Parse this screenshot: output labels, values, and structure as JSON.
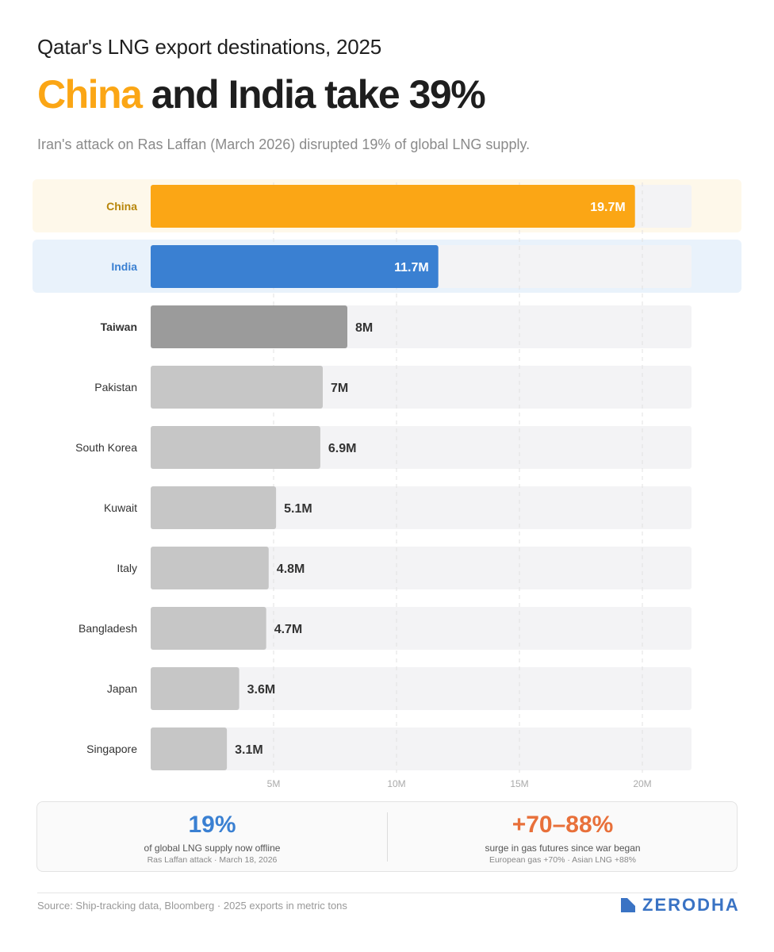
{
  "header": {
    "kicker": "Qatar's LNG export destinations, 2025",
    "headline_highlight": "China",
    "headline_rest": " and India take 39%",
    "subtitle": "Iran's attack on Ras Laffan (March 2026) disrupted 19% of global LNG supply."
  },
  "colors": {
    "china": "#fba615",
    "china_label": "#b8860b",
    "china_row_bg": "#fef8ea",
    "india": "#3a80d2",
    "india_row_bg": "#e9f2fb",
    "taiwan": "#9b9b9b",
    "default_bar": "#c6c6c6",
    "track": "#f3f3f5"
  },
  "chart_data": {
    "type": "bar",
    "orientation": "horizontal",
    "categories": [
      "China",
      "India",
      "Taiwan",
      "Pakistan",
      "South Korea",
      "Kuwait",
      "Italy",
      "Bangladesh",
      "Japan",
      "Singapore"
    ],
    "values": [
      19.7,
      11.7,
      8,
      7,
      6.9,
      5.1,
      4.8,
      4.7,
      3.6,
      3.1
    ],
    "value_labels": [
      "19.7M",
      "11.7M",
      "8M",
      "7M",
      "6.9M",
      "5.1M",
      "4.8M",
      "4.7M",
      "3.6M",
      "3.1M"
    ],
    "units": "million metric tons",
    "xlim": [
      0,
      22
    ],
    "xticks": [
      5,
      10,
      15,
      20
    ],
    "xtick_labels": [
      "5M",
      "10M",
      "15M",
      "20M"
    ],
    "grid": true,
    "highlighted": [
      "China",
      "India"
    ]
  },
  "stats": {
    "left": {
      "value": "19%",
      "description": "of global LNG supply now offline",
      "note": "Ras Laffan attack · March 18, 2026"
    },
    "right": {
      "value": "+70–88%",
      "description": "surge in gas futures since war began",
      "note": "European gas +70% · Asian LNG +88%"
    }
  },
  "footer": {
    "source": "Source: Ship-tracking data, Bloomberg · 2025 exports in metric tons",
    "brand": "ZERODHA",
    "brand_icon": "zerodha-logo-icon"
  }
}
